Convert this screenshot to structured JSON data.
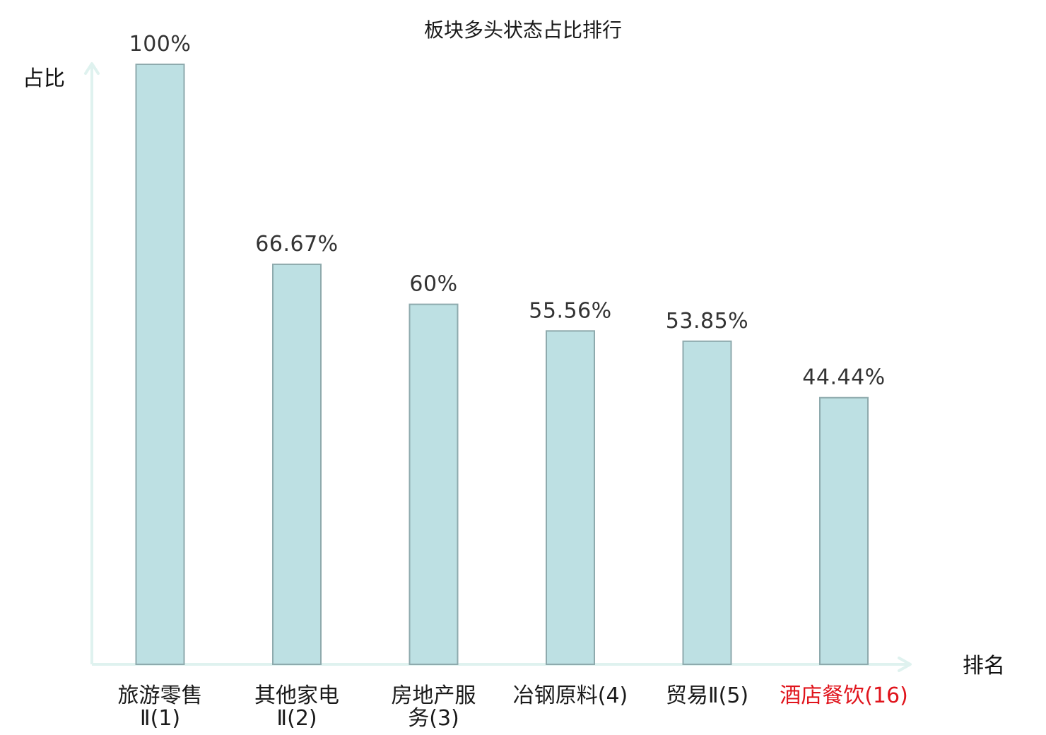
{
  "chart_data": {
    "type": "bar",
    "title": "板块多头状态占比排行",
    "ylabel": "占比",
    "xlabel": "排名",
    "ylim": [
      0,
      100
    ],
    "grid": false,
    "categories": [
      {
        "lines": [
          "旅游零售",
          "Ⅱ(1)"
        ],
        "highlight": false
      },
      {
        "lines": [
          "其他家电",
          "Ⅱ(2)"
        ],
        "highlight": false
      },
      {
        "lines": [
          "房地产服",
          "务(3)"
        ],
        "highlight": false
      },
      {
        "lines": [
          "冶钢原料(4)"
        ],
        "highlight": false
      },
      {
        "lines": [
          "贸易Ⅱ(5)"
        ],
        "highlight": false
      },
      {
        "lines": [
          "酒店餐饮(16)"
        ],
        "highlight": true
      }
    ],
    "values": [
      100,
      66.67,
      60,
      55.56,
      53.85,
      44.44
    ],
    "value_labels": [
      "100%",
      "66.67%",
      "60%",
      "55.56%",
      "53.85%",
      "44.44%"
    ],
    "colors": {
      "bar_fill": "#bde0e3",
      "bar_stroke": "#8eaaad",
      "axis": "#dff2ef",
      "highlight_text": "#e0141c",
      "normal_text": "#1a1a1a"
    }
  }
}
